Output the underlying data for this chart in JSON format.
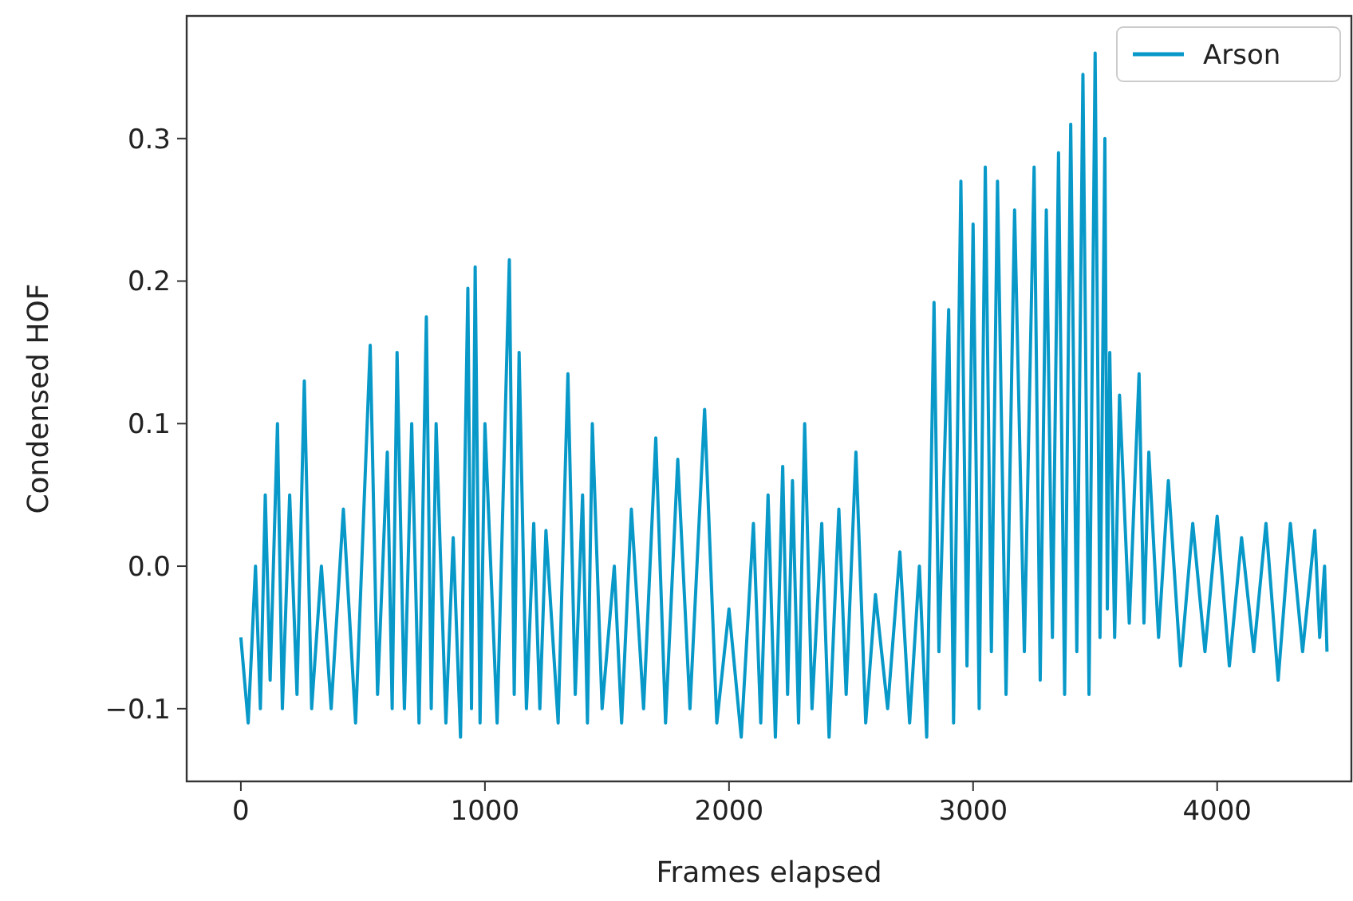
{
  "chart_data": {
    "type": "line",
    "xlabel": "Frames elapsed",
    "ylabel": "Condensed HOF",
    "legend": "top right",
    "grid": false,
    "xlim": [
      -222,
      4550
    ],
    "ylim": [
      -0.151,
      0.386
    ],
    "xticks": [
      0,
      1000,
      2000,
      3000,
      4000
    ],
    "yticks": [
      {
        "value": -0.1,
        "label": "−0.1"
      },
      {
        "value": 0,
        "label": "0.0"
      },
      0.1,
      0.2,
      0.3
    ],
    "series": [
      {
        "name": "Arson",
        "color": "#0899c9",
        "x": [
          0,
          30,
          60,
          80,
          100,
          120,
          150,
          170,
          200,
          230,
          260,
          290,
          330,
          370,
          420,
          470,
          530,
          560,
          600,
          620,
          640,
          670,
          700,
          730,
          760,
          780,
          800,
          840,
          870,
          900,
          930,
          945,
          960,
          980,
          1000,
          1050,
          1100,
          1120,
          1140,
          1170,
          1200,
          1225,
          1250,
          1300,
          1340,
          1370,
          1400,
          1420,
          1440,
          1480,
          1530,
          1560,
          1600,
          1650,
          1700,
          1740,
          1790,
          1840,
          1900,
          1950,
          2000,
          2050,
          2100,
          2130,
          2160,
          2190,
          2220,
          2240,
          2260,
          2285,
          2310,
          2340,
          2380,
          2410,
          2450,
          2480,
          2520,
          2560,
          2600,
          2650,
          2700,
          2740,
          2780,
          2810,
          2840,
          2860,
          2900,
          2920,
          2950,
          2975,
          3000,
          3025,
          3050,
          3075,
          3100,
          3135,
          3170,
          3210,
          3250,
          3275,
          3300,
          3325,
          3350,
          3375,
          3400,
          3425,
          3450,
          3475,
          3500,
          3520,
          3540,
          3550,
          3560,
          3580,
          3600,
          3640,
          3680,
          3700,
          3720,
          3760,
          3800,
          3850,
          3900,
          3950,
          4000,
          4050,
          4100,
          4150,
          4200,
          4250,
          4300,
          4350,
          4400,
          4420,
          4440,
          4450
        ],
        "values": [
          -0.05,
          -0.11,
          0.0,
          -0.1,
          0.05,
          -0.08,
          0.1,
          -0.1,
          0.05,
          -0.09,
          0.13,
          -0.1,
          0.0,
          -0.1,
          0.04,
          -0.11,
          0.155,
          -0.09,
          0.08,
          -0.1,
          0.15,
          -0.1,
          0.1,
          -0.11,
          0.175,
          -0.1,
          0.1,
          -0.11,
          0.02,
          -0.12,
          0.195,
          -0.1,
          0.21,
          -0.11,
          0.1,
          -0.11,
          0.215,
          -0.09,
          0.15,
          -0.1,
          0.03,
          -0.1,
          0.025,
          -0.11,
          0.135,
          -0.09,
          0.05,
          -0.11,
          0.1,
          -0.1,
          0.0,
          -0.11,
          0.04,
          -0.1,
          0.09,
          -0.11,
          0.075,
          -0.1,
          0.11,
          -0.11,
          -0.03,
          -0.12,
          0.03,
          -0.11,
          0.05,
          -0.12,
          0.07,
          -0.09,
          0.06,
          -0.11,
          0.1,
          -0.1,
          0.03,
          -0.12,
          0.04,
          -0.09,
          0.08,
          -0.11,
          -0.02,
          -0.1,
          0.01,
          -0.11,
          0.0,
          -0.12,
          0.185,
          -0.06,
          0.18,
          -0.11,
          0.27,
          -0.07,
          0.24,
          -0.1,
          0.28,
          -0.06,
          0.27,
          -0.09,
          0.25,
          -0.06,
          0.28,
          -0.08,
          0.25,
          -0.05,
          0.29,
          -0.09,
          0.31,
          -0.06,
          0.345,
          -0.09,
          0.36,
          -0.05,
          0.3,
          -0.03,
          0.15,
          -0.05,
          0.12,
          -0.04,
          0.135,
          -0.04,
          0.08,
          -0.05,
          0.06,
          -0.07,
          0.03,
          -0.06,
          0.035,
          -0.07,
          0.02,
          -0.06,
          0.03,
          -0.08,
          0.03,
          -0.06,
          0.025,
          -0.05,
          0.0,
          -0.06
        ]
      }
    ]
  }
}
